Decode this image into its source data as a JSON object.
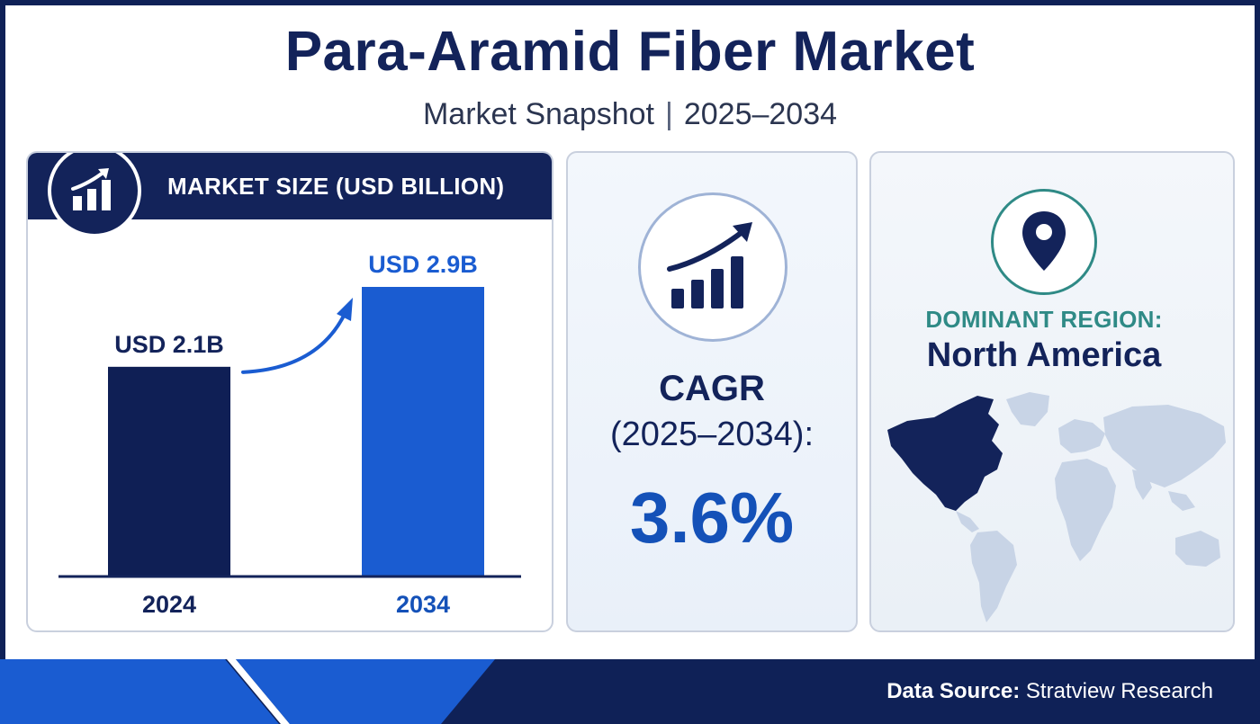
{
  "header": {
    "title": "Para-Aramid Fiber Market",
    "subtitle_left": "Market Snapshot",
    "subtitle_sep": "|",
    "subtitle_right": "2025–2034"
  },
  "market_size": {
    "title": "MARKET SIZE (USD BILLION)",
    "icon": "bar-growth-icon"
  },
  "cagr": {
    "label": "CAGR",
    "period": "(2025–2034):",
    "value": "3.6%",
    "icon": "growth-chart-icon"
  },
  "region": {
    "label": "DOMINANT REGION:",
    "value": "North America",
    "icon": "location-pin-icon"
  },
  "footer": {
    "source_label": "Data Source:",
    "source_value": "Stratview Research"
  },
  "colors": {
    "navy": "#13235a",
    "blue": "#1a5cd1",
    "teal": "#2f8a86",
    "map_land": "#c8d4e6",
    "map_highlight": "#13235a"
  },
  "chart_data": {
    "type": "bar",
    "categories": [
      "2024",
      "2034"
    ],
    "values": [
      2.1,
      2.9
    ],
    "value_labels": [
      "USD 2.1B",
      "USD 2.9B"
    ],
    "unit": "USD Billion",
    "bar_colors": [
      "#0f1f55",
      "#1a5cd1"
    ],
    "category_colors": [
      "#13235a",
      "#1451b8"
    ],
    "label_colors": [
      "#13235a",
      "#1a5cd1"
    ],
    "ylim": [
      0,
      2.9
    ],
    "grid": false,
    "legend": "none"
  }
}
